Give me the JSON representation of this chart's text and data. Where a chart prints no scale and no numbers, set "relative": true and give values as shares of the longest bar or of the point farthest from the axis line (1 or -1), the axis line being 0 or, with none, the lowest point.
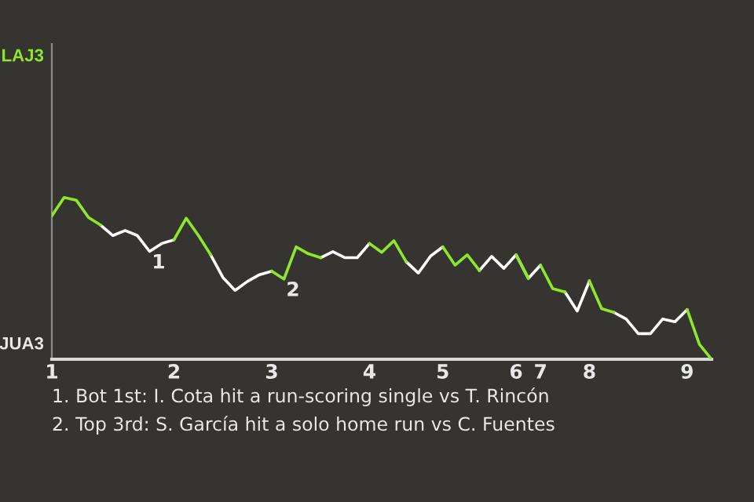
{
  "chart_data": {
    "type": "line",
    "relative": true,
    "categories": [
      "1",
      null,
      null,
      null,
      null,
      null,
      null,
      null,
      null,
      null,
      "2",
      null,
      null,
      null,
      null,
      null,
      null,
      null,
      "3",
      null,
      null,
      null,
      null,
      null,
      null,
      null,
      "4",
      null,
      null,
      null,
      null,
      null,
      "5",
      null,
      null,
      null,
      null,
      null,
      "6",
      null,
      "7",
      null,
      null,
      null,
      "8",
      null,
      null,
      null,
      null,
      null,
      null,
      null,
      "9",
      null,
      null
    ],
    "series": [
      {
        "color": "#ffffff",
        "values": [
          null,
          null,
          null,
          null,
          0.829,
          0.765,
          0.796,
          0.765,
          0.667,
          0.716,
          0.739,
          null,
          null,
          0.646,
          0.506,
          0.426,
          0.481,
          0.523,
          0.545,
          null,
          null,
          null,
          0.628,
          0.665,
          0.628,
          0.628,
          0.716,
          null,
          null,
          0.603,
          0.533,
          0.638,
          0.695,
          null,
          null,
          0.549,
          0.636,
          0.562,
          0.646,
          0.5,
          0.582,
          null,
          0.416,
          0.298,
          0.484,
          null,
          0.29,
          0.249,
          0.158,
          0.158,
          0.249,
          0.232,
          0.307,
          null,
          null
        ]
      },
      {
        "color": "#8ee82a",
        "values": [
          0.887,
          1,
          0.984,
          0.877,
          0.829,
          null,
          null,
          null,
          null,
          null,
          0.739,
          0.872,
          0.765,
          0.646,
          null,
          null,
          null,
          null,
          0.545,
          0.496,
          0.695,
          0.652,
          0.628,
          null,
          null,
          null,
          0.716,
          0.661,
          0.733,
          0.603,
          null,
          null,
          0.695,
          0.582,
          0.646,
          0.549,
          null,
          null,
          0.646,
          0.5,
          null,
          null,
          null,
          null,
          0.484,
          0.313,
          0.29,
          null,
          null,
          null,
          null,
          null,
          0.307,
          0.093,
          0
        ]
      },
      {
        "color": "#8ee82a",
        "values": [
          null,
          null,
          null,
          null,
          null,
          null,
          null,
          null,
          null,
          null,
          null,
          null,
          null,
          null,
          null,
          null,
          null,
          null,
          null,
          null,
          null,
          null,
          null,
          null,
          null,
          null,
          null,
          null,
          null,
          null,
          null,
          null,
          null,
          null,
          null,
          null,
          null,
          null,
          null,
          null,
          0.582,
          0.436,
          0.416,
          null,
          null,
          null,
          null,
          null,
          null,
          null,
          null,
          null,
          null,
          null,
          null
        ]
      }
    ],
    "annotations": [
      "LAJ3",
      "JUA3",
      {
        "text": "1",
        "y": 0.667
      },
      {
        "text": "2",
        "y": 0.496
      },
      "1. Bot 1st: I. Cota hit a run-scoring single vs T. Rincón",
      "2. Top 3rd: S. García hit a solo home run vs C. Fuentes"
    ]
  }
}
